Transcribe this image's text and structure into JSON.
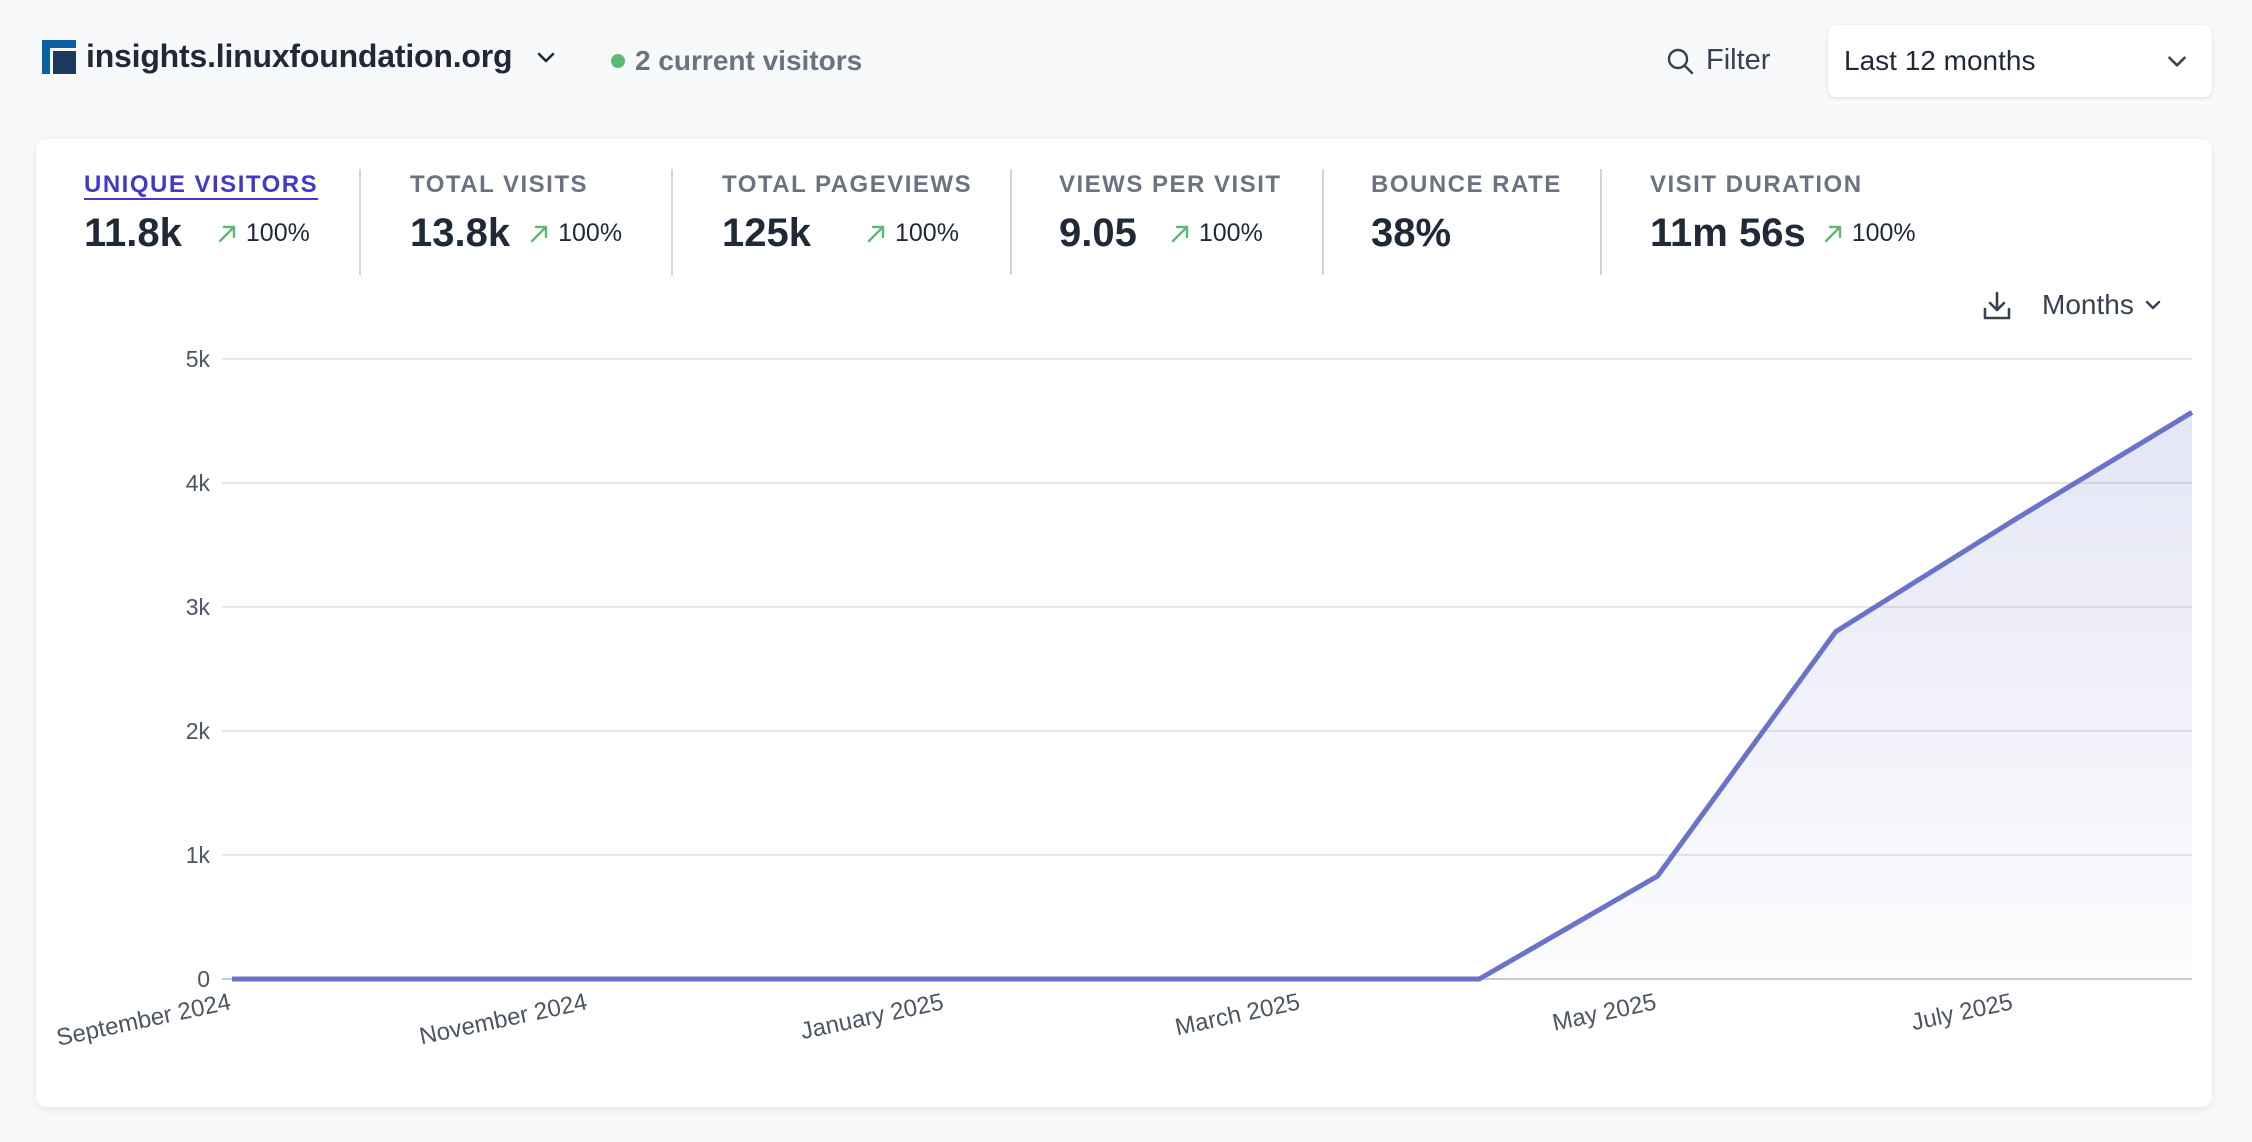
{
  "header": {
    "site_name": "insights.linuxfoundation.org",
    "current_visitors": "2 current visitors",
    "filter_label": "Filter",
    "date_range": "Last 12 months"
  },
  "metrics": [
    {
      "label": "UNIQUE VISITORS",
      "value": "11.8k",
      "change": "100%"
    },
    {
      "label": "TOTAL VISITS",
      "value": "13.8k",
      "change": "100%"
    },
    {
      "label": "TOTAL PAGEVIEWS",
      "value": "125k",
      "change": "100%"
    },
    {
      "label": "VIEWS PER VISIT",
      "value": "9.05",
      "change": "100%"
    },
    {
      "label": "BOUNCE RATE",
      "value": "38%",
      "change": ""
    },
    {
      "label": "VISIT DURATION",
      "value": "11m 56s",
      "change": "100%"
    }
  ],
  "chart_controls": {
    "interval": "Months"
  },
  "colors": {
    "accent": "#4338ca",
    "line": "#6b73c8",
    "up_arrow": "#5bb974",
    "live_dot": "#5bb974"
  },
  "chart_data": {
    "type": "line",
    "x": [
      "2024-09",
      "2024-10",
      "2024-11",
      "2024-12",
      "2025-01",
      "2025-02",
      "2025-03",
      "2025-04",
      "2025-05",
      "2025-06",
      "2025-07",
      "2025-08"
    ],
    "values": [
      0,
      0,
      0,
      0,
      0,
      0,
      0,
      0,
      830,
      2800,
      3700,
      4570
    ],
    "tick_labels": [
      "September 2024",
      "November 2024",
      "January 2025",
      "March 2025",
      "May 2025",
      "July 2025"
    ],
    "yticks": [
      "0",
      "1k",
      "2k",
      "3k",
      "4k",
      "5k"
    ],
    "ylim": [
      0,
      5000
    ],
    "grid": true,
    "area_fill": true
  }
}
